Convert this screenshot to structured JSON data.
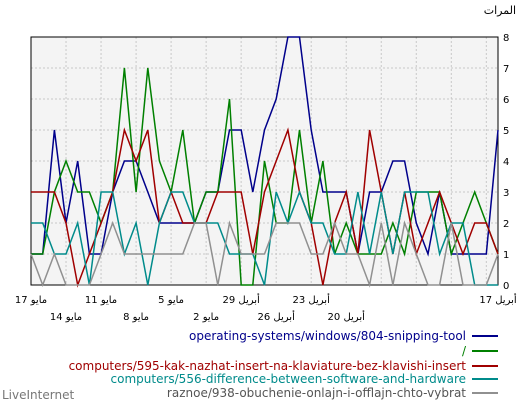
{
  "chart_data": {
    "type": "line",
    "ylabel": "المرات",
    "ylim": [
      0,
      8
    ],
    "yticks": [
      "0",
      "1",
      "2",
      "3",
      "4",
      "5",
      "6",
      "7",
      "8"
    ],
    "grid": true,
    "x_tick_labels_row1": [
      "17 مايو",
      "11 مايو",
      "5 مايو",
      "29 أبريل",
      "23 أبريل",
      "17 أبريل"
    ],
    "x_tick_labels_row2": [
      "14 مايو",
      "8 مايو",
      "2 مايو",
      "26 أبريل",
      "20 أبريل"
    ],
    "series": [
      {
        "name": "operating-systems/windows/804-snipping-tool",
        "color": "#00008b",
        "values": [
          1,
          1,
          5,
          2,
          4,
          1,
          1,
          3,
          4,
          4,
          3,
          2,
          2,
          2,
          2,
          3,
          3,
          5,
          5,
          3,
          5,
          6,
          8,
          8,
          5,
          3,
          3,
          3,
          1,
          3,
          3,
          4,
          4,
          2,
          1,
          3,
          1,
          1,
          1,
          1,
          5
        ]
      },
      {
        "name": "/",
        "color": "#008000",
        "values": [
          1,
          1,
          3,
          4,
          3,
          3,
          2,
          3,
          7,
          3,
          7,
          4,
          3,
          5,
          2,
          3,
          3,
          6,
          0,
          0,
          4,
          2,
          2,
          5,
          2,
          4,
          1,
          2,
          1,
          1,
          1,
          2,
          1,
          3,
          3,
          3,
          1,
          2,
          3,
          2,
          1
        ]
      },
      {
        "name": "computers/595-kak-nazhat-insert-na-klaviature-bez-klavishi-insert",
        "color": "#a00000",
        "values": [
          3,
          3,
          3,
          2,
          0,
          1,
          2,
          3,
          5,
          4,
          5,
          2,
          3,
          2,
          2,
          2,
          3,
          3,
          3,
          1,
          3,
          4,
          5,
          3,
          2,
          0,
          2,
          3,
          1,
          5,
          3,
          1,
          3,
          1,
          2,
          3,
          2,
          1,
          2,
          2,
          1
        ]
      },
      {
        "name": "computers/556-difference-between-software-and-hardware",
        "color": "#008b8b",
        "values": [
          2,
          2,
          1,
          1,
          2,
          0,
          3,
          3,
          1,
          2,
          0,
          2,
          3,
          3,
          2,
          2,
          2,
          1,
          1,
          1,
          0,
          3,
          2,
          3,
          2,
          2,
          1,
          1,
          3,
          1,
          3,
          1,
          3,
          3,
          3,
          1,
          2,
          2,
          0,
          0,
          0
        ]
      },
      {
        "name": "raznoe/938-obuchenie-onlajn-i-offlajn-chto-vybrat",
        "color": "#909090",
        "values": [
          1,
          0,
          1,
          0,
          0,
          0,
          1,
          2,
          1,
          1,
          1,
          1,
          1,
          1,
          2,
          2,
          0,
          2,
          1,
          1,
          1,
          2,
          2,
          2,
          1,
          1,
          2,
          1,
          1,
          0,
          2,
          0,
          2,
          1,
          0,
          0,
          2,
          0,
          0,
          0,
          1
        ]
      }
    ]
  },
  "footer": "LiveInternet"
}
